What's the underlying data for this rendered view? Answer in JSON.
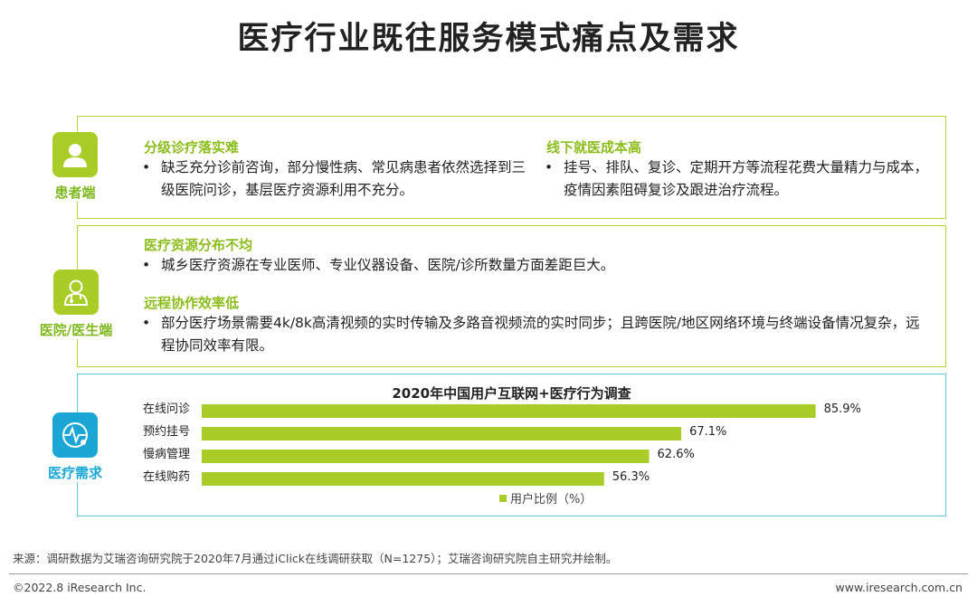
{
  "title": "医疗行业既往服务模式痛点及需求",
  "patient": {
    "label": "患者端",
    "s1_title": "分级诊疗落实难",
    "s1_text": "缺乏充分诊前咨询，部分慢性病、常见病患者依然选择到三级医院问诊，基层医疗资源利用不充分。",
    "s2_title": "线下就医成本高",
    "s2_text": "挂号、排队、复诊、定期开方等流程花费大量精力与成本，疫情因素阻碍复诊及跟进治疗流程。"
  },
  "hospital": {
    "label": "医院/医生端",
    "s1_title": "医疗资源分布不均",
    "s1_text": "城乡医疗资源在专业医师、专业仪器设备、医院/诊所数量方面差距巨大。",
    "s2_title": "远程协作效率低",
    "s2_text": "部分医疗场景需要4k/8k高清视频的实时传输及多路音视频流的实时同步；且跨医院/地区网络环境与终端设备情况复杂，远程协同效率有限。"
  },
  "demand": {
    "label": "医疗需求"
  },
  "chart_data": {
    "type": "bar",
    "orientation": "horizontal",
    "title": "2020年中国用户互联网+医疗行为调查",
    "categories": [
      "在线问诊",
      "预约挂号",
      "慢病管理",
      "在线购药"
    ],
    "series": [
      {
        "name": "用户比例（%）",
        "values": [
          85.9,
          67.1,
          62.6,
          56.3
        ],
        "labels": [
          "85.9%",
          "67.1%",
          "62.6%",
          "56.3%"
        ]
      }
    ],
    "xlim": [
      0,
      100
    ],
    "legend": "bottom",
    "grid": false,
    "color": "#a9cc26"
  },
  "source": "来源：调研数据为艾瑞咨询研究院于2020年7月通过iClick在线调研获取（N=1275）；艾瑞咨询研究院自主研究并绘制。",
  "copyright": "©2022.8 iResearch Inc.",
  "website": "www.iresearch.com.cn",
  "bullet": "•",
  "colors": {
    "green": "#a9cc26",
    "blue": "#1aa7d6",
    "title_green": "#8cbd1c"
  }
}
